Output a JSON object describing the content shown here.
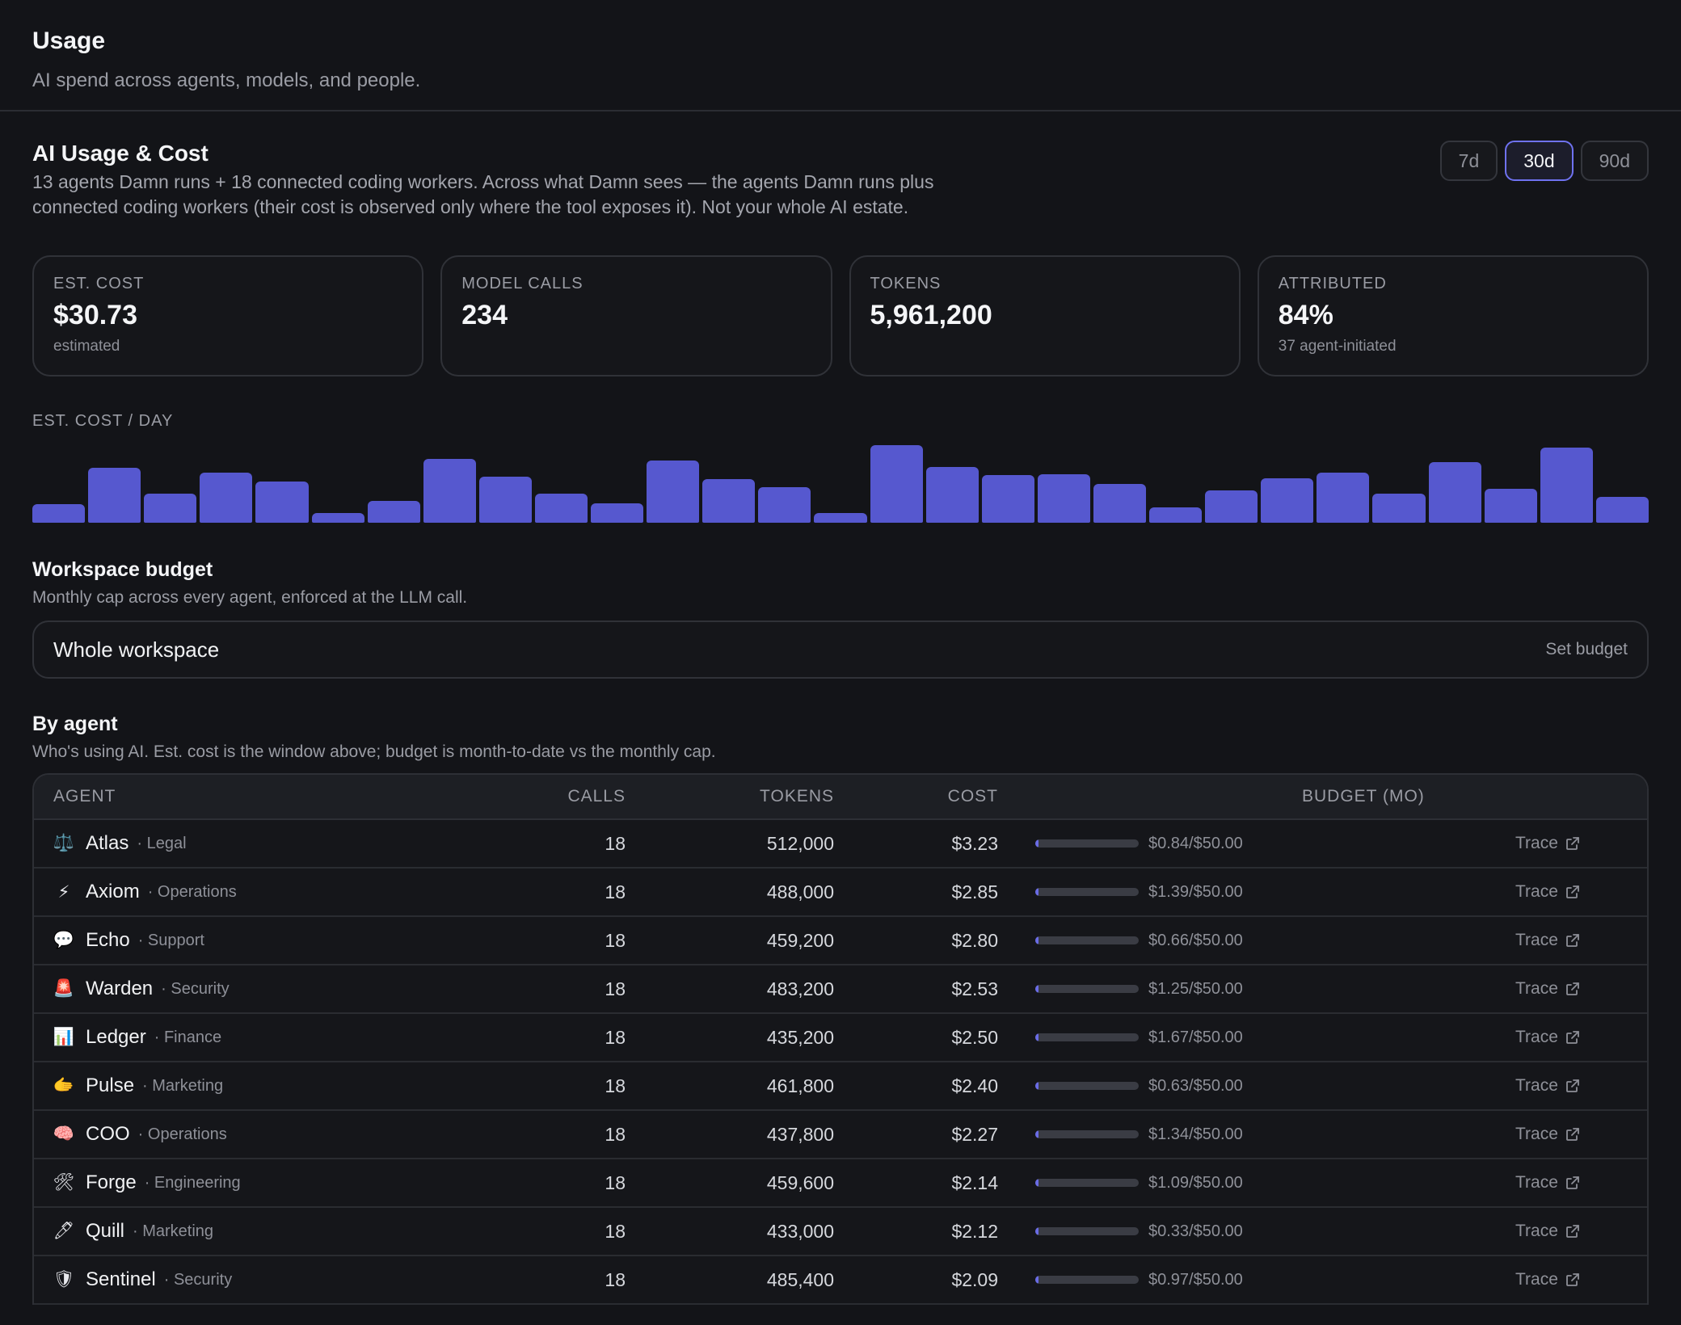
{
  "page": {
    "title": "Usage",
    "subtitle": "AI spend across agents, models, and people."
  },
  "section": {
    "title": "AI Usage & Cost",
    "description": "13 agents Damn runs + 18 connected coding workers. Across what Damn sees — the agents Damn runs plus connected coding workers (their cost is observed only where the tool exposes it). Not your whole AI estate.",
    "ranges": [
      {
        "label": "7d",
        "active": false
      },
      {
        "label": "30d",
        "active": true
      },
      {
        "label": "90d",
        "active": false
      }
    ]
  },
  "stats": [
    {
      "label": "EST. COST",
      "value": "$30.73",
      "sub": "estimated"
    },
    {
      "label": "MODEL CALLS",
      "value": "234",
      "sub": ""
    },
    {
      "label": "TOKENS",
      "value": "5,961,200",
      "sub": ""
    },
    {
      "label": "ATTRIBUTED",
      "value": "84%",
      "sub": "37 agent-initiated"
    }
  ],
  "chart_data": {
    "type": "bar",
    "title": "EST. COST / DAY",
    "values": [
      0.24,
      0.71,
      0.38,
      0.65,
      0.53,
      0.13,
      0.28,
      0.82,
      0.59,
      0.38,
      0.25,
      0.8,
      0.56,
      0.46,
      0.13,
      1.0,
      0.72,
      0.61,
      0.63,
      0.5,
      0.2,
      0.42,
      0.57,
      0.65,
      0.38,
      0.78,
      0.44,
      0.97,
      0.33
    ],
    "ylim": [
      0,
      1
    ]
  },
  "budget": {
    "title": "Workspace budget",
    "description": "Monthly cap across every agent, enforced at the LLM call.",
    "scope": "Whole workspace",
    "action": "Set budget"
  },
  "agents": {
    "title": "By agent",
    "description": "Who's using AI. Est. cost is the window above; budget is month-to-date vs the monthly cap.",
    "columns": [
      "AGENT",
      "CALLS",
      "TOKENS",
      "COST",
      "BUDGET (MO)"
    ],
    "trace_label": "Trace",
    "rows": [
      {
        "icon": "⚖️",
        "icon_name": "scales-icon",
        "name": "Atlas",
        "dept": "· Legal",
        "calls": "18",
        "tokens": "512,000",
        "cost": "$3.23",
        "budget": "$0.84/$50.00",
        "used_fraction": 0.0168
      },
      {
        "icon": "⚡",
        "icon_name": "lightning-icon",
        "name": "Axiom",
        "dept": "· Operations",
        "calls": "18",
        "tokens": "488,000",
        "cost": "$2.85",
        "budget": "$1.39/$50.00",
        "used_fraction": 0.0278
      },
      {
        "icon": "💬",
        "icon_name": "speech-bubble-icon",
        "name": "Echo",
        "dept": "· Support",
        "calls": "18",
        "tokens": "459,200",
        "cost": "$2.80",
        "budget": "$0.66/$50.00",
        "used_fraction": 0.0132
      },
      {
        "icon": "🚨",
        "icon_name": "siren-icon",
        "name": "Warden",
        "dept": "· Security",
        "calls": "18",
        "tokens": "483,200",
        "cost": "$2.53",
        "budget": "$1.25/$50.00",
        "used_fraction": 0.025
      },
      {
        "icon": "📊",
        "icon_name": "bar-chart-icon",
        "name": "Ledger",
        "dept": "· Finance",
        "calls": "18",
        "tokens": "435,200",
        "cost": "$2.50",
        "budget": "$1.67/$50.00",
        "used_fraction": 0.0334
      },
      {
        "icon": "🫱",
        "icon_name": "hand-icon",
        "name": "Pulse",
        "dept": "· Marketing",
        "calls": "18",
        "tokens": "461,800",
        "cost": "$2.40",
        "budget": "$0.63/$50.00",
        "used_fraction": 0.0126
      },
      {
        "icon": "🧠",
        "icon_name": "brain-icon",
        "name": "COO",
        "dept": "· Operations",
        "calls": "18",
        "tokens": "437,800",
        "cost": "$2.27",
        "budget": "$1.34/$50.00",
        "used_fraction": 0.0268
      },
      {
        "icon": "🛠",
        "icon_name": "tools-icon",
        "name": "Forge",
        "dept": "· Engineering",
        "calls": "18",
        "tokens": "459,600",
        "cost": "$2.14",
        "budget": "$1.09/$50.00",
        "used_fraction": 0.0218
      },
      {
        "icon": "🖊",
        "icon_name": "pen-icon",
        "name": "Quill",
        "dept": "· Marketing",
        "calls": "18",
        "tokens": "433,000",
        "cost": "$2.12",
        "budget": "$0.33/$50.00",
        "used_fraction": 0.0066
      },
      {
        "icon": "🛡",
        "icon_name": "shield-icon",
        "name": "Sentinel",
        "dept": "· Security",
        "calls": "18",
        "tokens": "485,400",
        "cost": "$2.09",
        "budget": "$0.97/$50.00",
        "used_fraction": 0.0194
      }
    ]
  },
  "colors": {
    "background": "#131418",
    "accent": "#5658cf",
    "active_border": "#6f72f0"
  }
}
